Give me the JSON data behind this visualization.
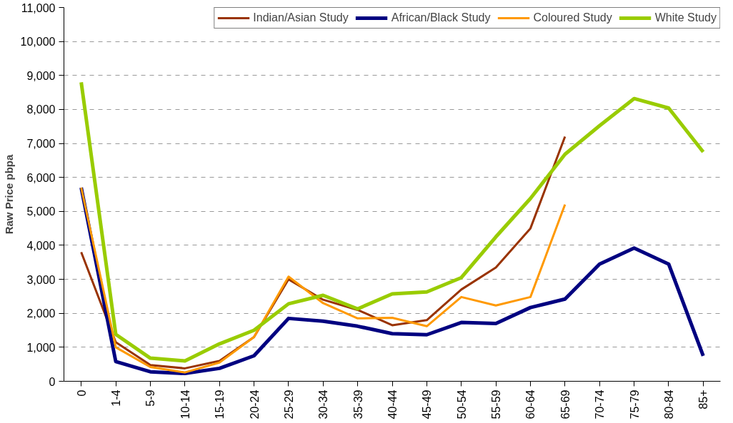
{
  "chart_data": {
    "type": "line",
    "ylabel": "Raw Price pbpa",
    "categories": [
      "0",
      "1-4",
      "5-9",
      "10-14",
      "15-19",
      "20-24",
      "25-29",
      "30-34",
      "35-39",
      "40-44",
      "45-49",
      "50-54",
      "55-59",
      "60-64",
      "65-69",
      "70-74",
      "75-79",
      "80-84",
      "85+"
    ],
    "series": [
      {
        "name": "Indian/Asian Study",
        "color": "#993300",
        "values": [
          3800,
          1150,
          480,
          380,
          600,
          1300,
          3000,
          2400,
          2100,
          1650,
          1800,
          2700,
          3350,
          4500,
          7200,
          null,
          null,
          null,
          null
        ]
      },
      {
        "name": "African/Black Study",
        "color": "#000080",
        "values": [
          5700,
          580,
          280,
          230,
          380,
          750,
          1850,
          1770,
          1620,
          1400,
          1370,
          1730,
          1700,
          2170,
          2420,
          3450,
          3920,
          3450,
          750
        ]
      },
      {
        "name": "Coloured Study",
        "color": "#ff9900",
        "values": [
          5700,
          1000,
          420,
          260,
          550,
          1300,
          3080,
          2300,
          1850,
          1870,
          1620,
          2480,
          2230,
          2480,
          5200,
          null,
          null,
          null,
          null
        ]
      },
      {
        "name": "White Study",
        "color": "#99cc00",
        "values": [
          8800,
          1380,
          680,
          600,
          1100,
          1500,
          2280,
          2530,
          2130,
          2570,
          2630,
          3050,
          4250,
          5380,
          6680,
          7520,
          8320,
          8040,
          6750
        ]
      }
    ],
    "ylim": [
      0,
      11000
    ],
    "yticks": [
      {
        "value": 0,
        "label": "0"
      },
      {
        "value": 1000,
        "label": "1,000"
      },
      {
        "value": 2000,
        "label": "2,000"
      },
      {
        "value": 3000,
        "label": "3,000"
      },
      {
        "value": 4000,
        "label": "4,000"
      },
      {
        "value": 5000,
        "label": "5,000"
      },
      {
        "value": 6000,
        "label": "6,000"
      },
      {
        "value": 7000,
        "label": "7,000"
      },
      {
        "value": 8000,
        "label": "8,000"
      },
      {
        "value": 9000,
        "label": "9,000"
      },
      {
        "value": 10000,
        "label": "10,000"
      },
      {
        "value": 11000,
        "label": "11,000"
      }
    ],
    "grid": "y",
    "legend": "top",
    "marker": "none",
    "line_style": "solid"
  }
}
